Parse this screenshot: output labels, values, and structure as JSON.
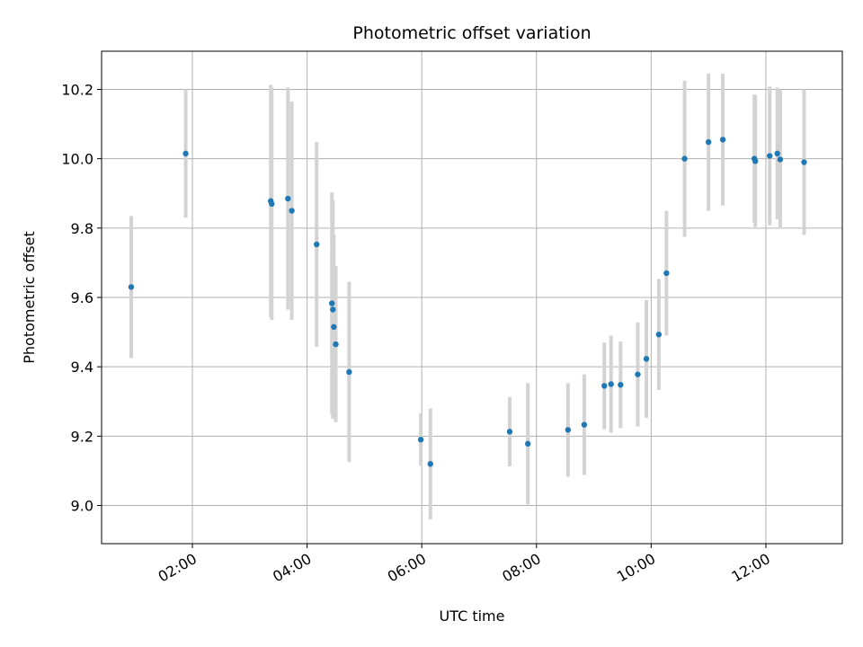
{
  "chart_data": {
    "type": "scatter",
    "title": "Photometric offset variation",
    "xlabel": "UTC time",
    "ylabel": "Photometric offset",
    "x_ticks": [
      "02:00",
      "04:00",
      "06:00",
      "08:00",
      "10:00",
      "12:00"
    ],
    "x_tick_hours": [
      2,
      4,
      6,
      8,
      10,
      12
    ],
    "y_ticks": [
      9.0,
      9.2,
      9.4,
      9.6,
      9.8,
      10.0,
      10.2
    ],
    "xlim": [
      "00:25",
      "13:20"
    ],
    "ylim": [
      8.89,
      10.31
    ],
    "grid": true,
    "colors": {
      "points": "#1f77b4",
      "error_bars": "#d3d3d3"
    },
    "points": [
      {
        "t": "00:56",
        "y": 9.63,
        "err": 0.205
      },
      {
        "t": "01:53",
        "y": 10.015,
        "err": 0.185
      },
      {
        "t": "03:22",
        "y": 9.878,
        "err": 0.335
      },
      {
        "t": "03:23",
        "y": 9.87,
        "err": 0.335
      },
      {
        "t": "03:40",
        "y": 9.885,
        "err": 0.32
      },
      {
        "t": "03:44",
        "y": 9.85,
        "err": 0.315
      },
      {
        "t": "04:10",
        "y": 9.753,
        "err": 0.295
      },
      {
        "t": "04:26",
        "y": 9.583,
        "err": 0.32
      },
      {
        "t": "04:27",
        "y": 9.565,
        "err": 0.315
      },
      {
        "t": "04:28",
        "y": 9.515,
        "err": 0.265
      },
      {
        "t": "04:30",
        "y": 9.465,
        "err": 0.225
      },
      {
        "t": "04:44",
        "y": 9.385,
        "err": 0.26
      },
      {
        "t": "05:59",
        "y": 9.19,
        "err": 0.075
      },
      {
        "t": "06:09",
        "y": 9.12,
        "err": 0.16
      },
      {
        "t": "07:32",
        "y": 9.213,
        "err": 0.1
      },
      {
        "t": "07:51",
        "y": 9.178,
        "err": 0.175
      },
      {
        "t": "08:33",
        "y": 9.218,
        "err": 0.135
      },
      {
        "t": "08:50",
        "y": 9.233,
        "err": 0.145
      },
      {
        "t": "09:11",
        "y": 9.345,
        "err": 0.125
      },
      {
        "t": "09:18",
        "y": 9.35,
        "err": 0.14
      },
      {
        "t": "09:28",
        "y": 9.348,
        "err": 0.125
      },
      {
        "t": "09:46",
        "y": 9.378,
        "err": 0.15
      },
      {
        "t": "09:55",
        "y": 9.423,
        "err": 0.17
      },
      {
        "t": "10:08",
        "y": 9.493,
        "err": 0.16
      },
      {
        "t": "10:16",
        "y": 9.67,
        "err": 0.18
      },
      {
        "t": "10:35",
        "y": 10.0,
        "err": 0.225
      },
      {
        "t": "11:00",
        "y": 10.048,
        "err": 0.198
      },
      {
        "t": "11:15",
        "y": 10.055,
        "err": 0.19
      },
      {
        "t": "11:48",
        "y": 10.0,
        "err": 0.185
      },
      {
        "t": "11:49",
        "y": 9.993,
        "err": 0.19
      },
      {
        "t": "12:04",
        "y": 10.008,
        "err": 0.2
      },
      {
        "t": "12:12",
        "y": 10.015,
        "err": 0.19
      },
      {
        "t": "12:15",
        "y": 9.998,
        "err": 0.2
      },
      {
        "t": "12:40",
        "y": 9.99,
        "err": 0.21
      }
    ]
  }
}
